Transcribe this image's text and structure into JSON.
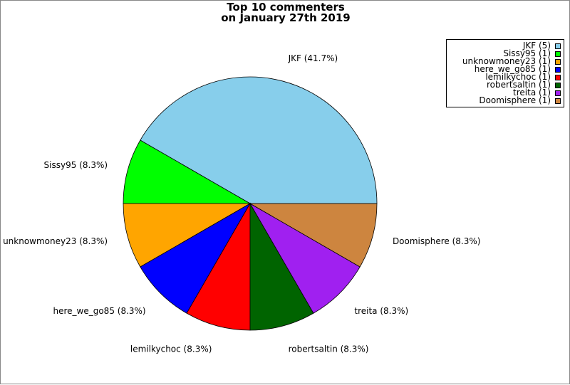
{
  "chart_data": {
    "type": "pie",
    "title_lines": [
      "Top 10 commenters",
      "on January 27th 2019"
    ],
    "legend_placement": "top-right",
    "slices": [
      {
        "name": "JKF",
        "count": 5,
        "percent": 41.7,
        "label": "JKF (41.7%)",
        "legend": "JKF (5)",
        "color": "#87CEEB"
      },
      {
        "name": "Sissy95",
        "count": 1,
        "percent": 8.3,
        "label": "Sissy95 (8.3%)",
        "legend": "Sissy95 (1)",
        "color": "#00FF00"
      },
      {
        "name": "unknowmoney23",
        "count": 1,
        "percent": 8.3,
        "label": "unknowmoney23 (8.3%)",
        "legend": "unknowmoney23 (1)",
        "color": "#FFA500"
      },
      {
        "name": "here_we_go85",
        "count": 1,
        "percent": 8.3,
        "label": "here_we_go85 (8.3%)",
        "legend": "here_we_go85 (1)",
        "color": "#0000FF"
      },
      {
        "name": "lemilkychoc",
        "count": 1,
        "percent": 8.3,
        "label": "lemilkychoc (8.3%)",
        "legend": "lemilkychoc (1)",
        "color": "#FF0000"
      },
      {
        "name": "robertsaltin",
        "count": 1,
        "percent": 8.3,
        "label": "robertsaltin (8.3%)",
        "legend": "robertsaltin (1)",
        "color": "#006400"
      },
      {
        "name": "treita",
        "count": 1,
        "percent": 8.3,
        "label": "treita (8.3%)",
        "legend": "treita (1)",
        "color": "#A020F0"
      },
      {
        "name": "Doomisphere",
        "count": 1,
        "percent": 8.3,
        "label": "Doomisphere (8.3%)",
        "legend": "Doomisphere (1)",
        "color": "#CD853F"
      }
    ]
  }
}
